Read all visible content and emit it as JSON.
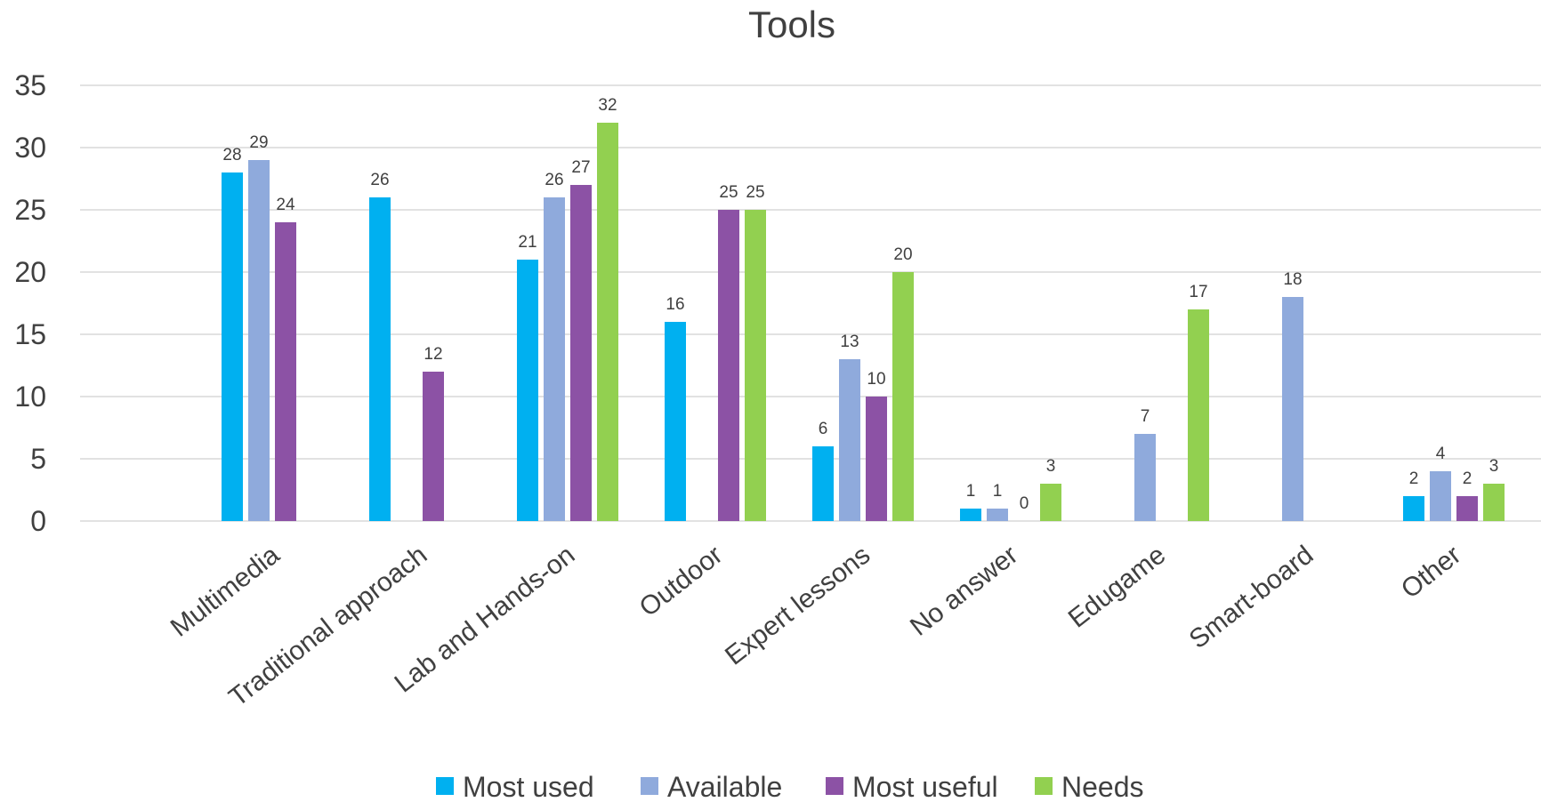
{
  "chart_data": {
    "type": "bar",
    "title": "Tools",
    "xlabel": "",
    "ylabel": "",
    "ylim": [
      0,
      35
    ],
    "yticks": [
      0,
      5,
      10,
      15,
      20,
      25,
      30,
      35
    ],
    "grid": true,
    "legend_position": "bottom",
    "categories": [
      "Multimedia",
      "Traditional approach",
      "Lab and Hands-on",
      "Outdoor",
      "Expert lessons",
      "No answer",
      "Edugame",
      "Smart-board",
      "Other"
    ],
    "series": [
      {
        "name": "Most used",
        "color": "#00b0f0",
        "values": [
          28,
          26,
          21,
          16,
          6,
          1,
          null,
          null,
          2
        ]
      },
      {
        "name": "Available",
        "color": "#8faadc",
        "values": [
          29,
          null,
          26,
          null,
          13,
          1,
          7,
          18,
          4
        ]
      },
      {
        "name": "Most useful",
        "color": "#8c52a5",
        "values": [
          24,
          12,
          27,
          25,
          10,
          0,
          null,
          null,
          2
        ]
      },
      {
        "name": "Needs",
        "color": "#92d050",
        "values": [
          null,
          null,
          32,
          25,
          20,
          3,
          17,
          null,
          3
        ]
      }
    ]
  }
}
